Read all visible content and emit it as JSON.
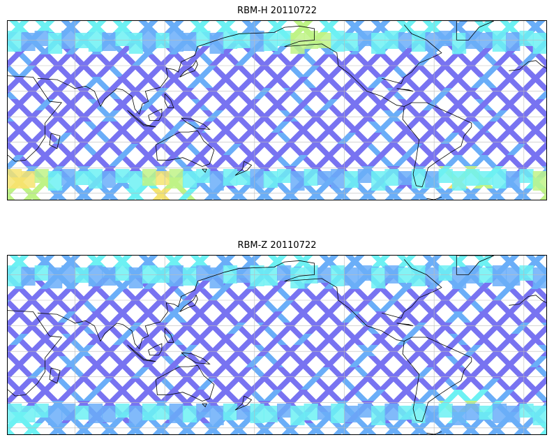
{
  "panels": [
    {
      "title": "RBM-H 20110722",
      "field": "RBM-H",
      "date": "20110722",
      "hotspots": [
        {
          "region": "southern-ocean-indian",
          "lon": 25,
          "lat": -55,
          "level": 0.95
        },
        {
          "region": "southern-ocean-south-australia",
          "lon": 120,
          "lat": -58,
          "level": 0.85
        },
        {
          "region": "south-atlantic-argentina",
          "lon": 320,
          "lat": -48,
          "level": 0.95
        },
        {
          "region": "north-pacific-alaska",
          "lon": 215,
          "lat": 65,
          "level": 0.8
        }
      ]
    },
    {
      "title": "RBM-Z 20110722",
      "field": "RBM-Z",
      "date": "20110722",
      "hotspots": [
        {
          "region": "south-atlantic-argentina",
          "lon": 320,
          "lat": -42,
          "level": 0.75
        },
        {
          "region": "southern-ocean-indian",
          "lon": 25,
          "lat": -58,
          "level": 0.55
        }
      ]
    }
  ],
  "map": {
    "projection": "cylindrical",
    "lon_range": [
      15,
      375
    ],
    "lat_range": [
      -65,
      75
    ],
    "gridlines": true,
    "colormap": "jet",
    "colors": {
      "low": "#6a64f0",
      "lowmid": "#5aa6f8",
      "mid": "#5ef0f2",
      "midhigh": "#b8f27a",
      "high": "#f5e060",
      "top": "#e85a5a",
      "coast": "#000000",
      "grid": "#bbbbbb"
    }
  }
}
